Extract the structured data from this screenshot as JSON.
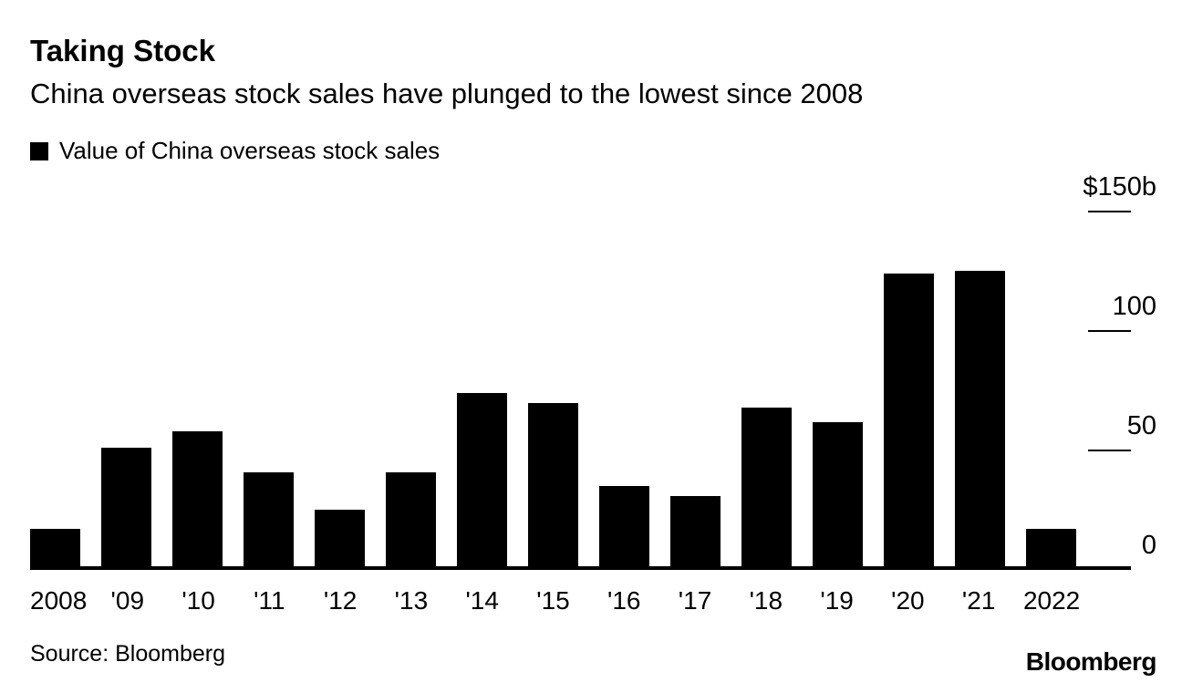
{
  "header": {
    "title": "Taking Stock",
    "subtitle": "China overseas stock sales have plunged to the lowest since 2008"
  },
  "legend": {
    "label": "Value of China overseas stock sales",
    "swatch_color": "#000000"
  },
  "chart_data": {
    "type": "bar",
    "title": "Taking Stock",
    "subtitle": "China overseas stock sales have plunged to the lowest since 2008",
    "legend_entries": [
      "Value of China overseas stock sales"
    ],
    "legend_position": "top-left",
    "categories": [
      "2008",
      "'09",
      "'10",
      "'11",
      "'12",
      "'13",
      "'14",
      "'15",
      "'16",
      "'17",
      "'18",
      "'19",
      "'20",
      "'21",
      "2022"
    ],
    "values": [
      17,
      51,
      58,
      41,
      25,
      41,
      74,
      70,
      35,
      31,
      68,
      62,
      124,
      125,
      17
    ],
    "unit": "$ billions",
    "ylim": [
      0,
      150
    ],
    "yticks": {
      "values": [
        150,
        100,
        50,
        0
      ],
      "labels": [
        "$150b",
        "100",
        "50",
        "0"
      ]
    },
    "bar_color": "#000000",
    "grid": "off",
    "axis_side": "right"
  },
  "footer": {
    "source": "Source: Bloomberg",
    "logo": "Bloomberg"
  }
}
